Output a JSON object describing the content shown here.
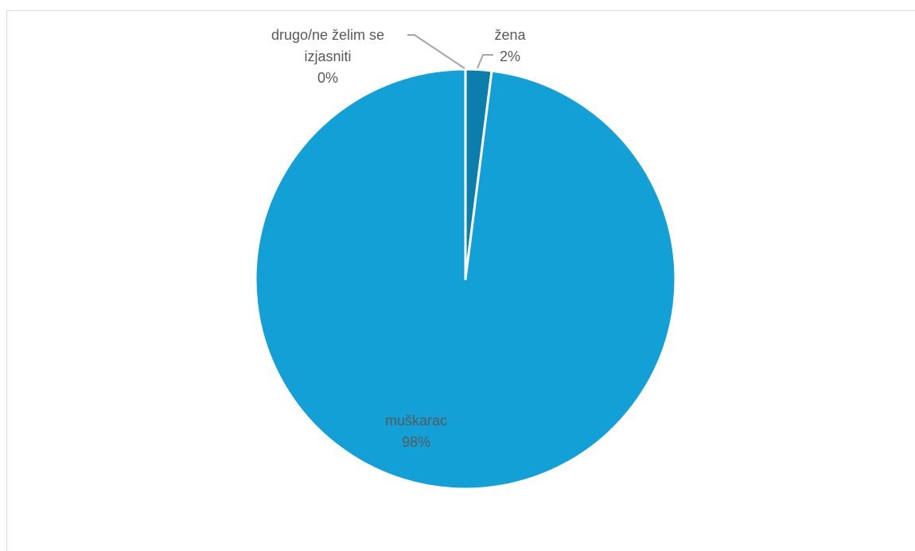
{
  "chart_data": {
    "type": "pie",
    "slices": [
      {
        "label": "muškarac",
        "value": 98,
        "display": "98%",
        "color": "#12a0d7"
      },
      {
        "label": "drugo/ne želim se izjasniti",
        "value": 0,
        "display": "0%",
        "color": "#12a0d7"
      },
      {
        "label": "žena",
        "value": 2,
        "display": "2%",
        "color": "#0b7eab"
      }
    ],
    "labels": {
      "other_line1": "drugo/ne želim se",
      "other_line2": "izjasniti",
      "other_pct": "0%",
      "zena_name": "žena",
      "zena_pct": "2%",
      "muskarac_name": "muškarac",
      "muskarac_pct": "98%"
    },
    "legend": "none"
  }
}
